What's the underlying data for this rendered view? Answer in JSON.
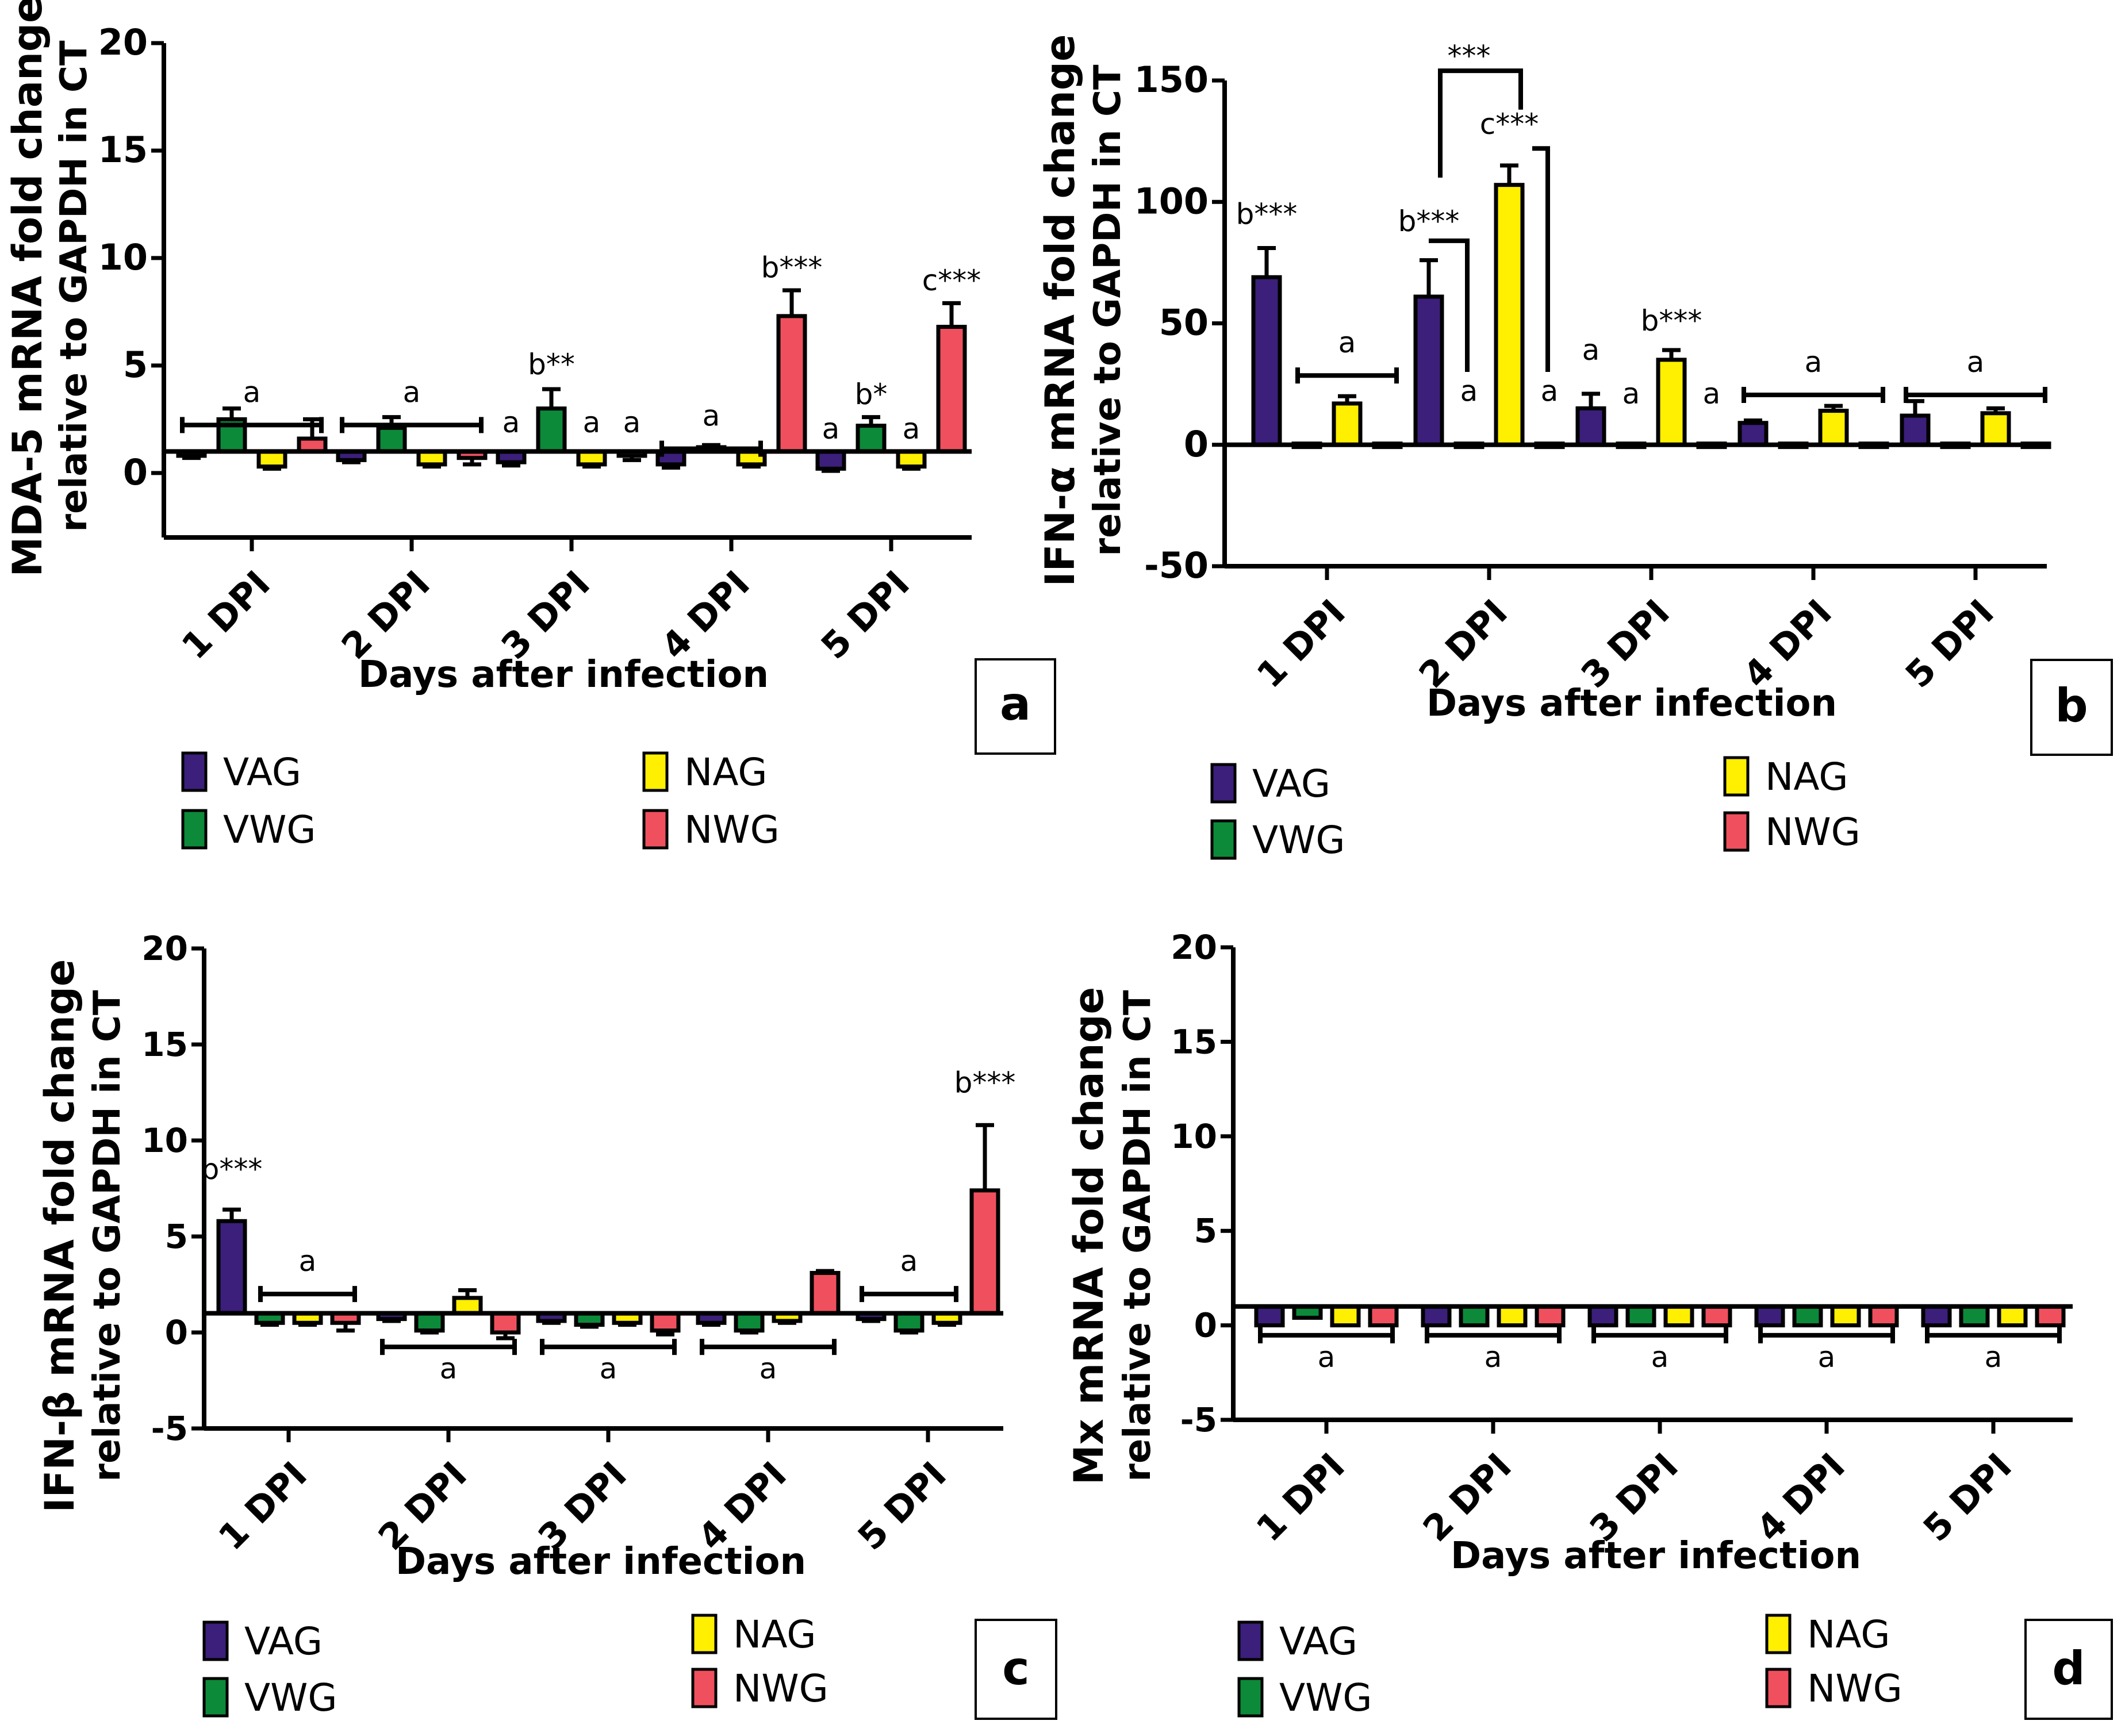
{
  "colors": {
    "VAG": "#3b1f7a",
    "VWG": "#0c8a3a",
    "NAG": "#ffef00",
    "NWG": "#f0505e",
    "axis": "#000000"
  },
  "legend": [
    "VAG",
    "VWG",
    "NAG",
    "NWG"
  ],
  "chart_data": [
    {
      "panel": "a",
      "type": "bar",
      "ylabel_line1": "MDA-5 mRNA fold change",
      "ylabel_line2": "relative to GAPDH in CT",
      "xlabel": "Days after infection",
      "categories": [
        "1 DPI",
        "2 DPI",
        "3 DPI",
        "4 DPI",
        "5 DPI"
      ],
      "ylim": [
        -3,
        20
      ],
      "baseline": 1,
      "yticks": [
        "20",
        "15",
        "10",
        "5",
        "0"
      ],
      "ytick_values": [
        20,
        15,
        10,
        5,
        0
      ],
      "series": [
        {
          "name": "VAG",
          "values": [
            0.8,
            0.6,
            0.5,
            0.4,
            0.2
          ],
          "errors": [
            0.1,
            0.1,
            0.15,
            0.15,
            0.1
          ]
        },
        {
          "name": "VWG",
          "values": [
            2.5,
            2.1,
            3.0,
            1.2,
            2.2
          ],
          "errors": [
            0.5,
            0.5,
            0.9,
            0.1,
            0.4
          ]
        },
        {
          "name": "NAG",
          "values": [
            0.3,
            0.4,
            0.4,
            0.4,
            0.3
          ],
          "errors": [
            0.1,
            0.1,
            0.1,
            0.1,
            0.1
          ]
        },
        {
          "name": "NWG",
          "values": [
            1.6,
            0.7,
            0.8,
            7.3,
            6.8
          ],
          "errors": [
            0.9,
            0.3,
            0.2,
            1.2,
            1.1
          ]
        }
      ],
      "annotations": [
        {
          "text": "a",
          "group": 0,
          "bar": 1.5,
          "value": 3.3,
          "bracket": [
            0,
            3
          ]
        },
        {
          "text": "a",
          "group": 1,
          "bar": 1.5,
          "value": 3.3,
          "bracket": [
            0,
            3
          ]
        },
        {
          "text": "a",
          "group": 2,
          "bar": 0,
          "value": 1.9
        },
        {
          "text": "b**",
          "group": 2,
          "bar": 1,
          "value": 4.6
        },
        {
          "text": "a",
          "group": 2,
          "bar": 2,
          "value": 1.9
        },
        {
          "text": "a",
          "group": 2,
          "bar": 3,
          "value": 1.9
        },
        {
          "text": "a",
          "group": 3,
          "bar": 1.0,
          "value": 2.2,
          "bracket": [
            0,
            2
          ]
        },
        {
          "text": "b***",
          "group": 3,
          "bar": 3,
          "value": 9.1
        },
        {
          "text": "a",
          "group": 4,
          "bar": 0,
          "value": 1.6
        },
        {
          "text": "b*",
          "group": 4,
          "bar": 1,
          "value": 3.2
        },
        {
          "text": "a",
          "group": 4,
          "bar": 2,
          "value": 1.6
        },
        {
          "text": "c***",
          "group": 4,
          "bar": 3,
          "value": 8.5
        }
      ],
      "panel_label": "a"
    },
    {
      "panel": "b",
      "type": "bar",
      "ylabel_line1": "IFN-α mRNA fold change",
      "ylabel_line2": "relative to GAPDH in CT",
      "xlabel": "Days after infection",
      "categories": [
        "1 DPI",
        "2 DPI",
        "3 DPI",
        "4 DPI",
        "5 DPI"
      ],
      "ylim": [
        -50,
        150
      ],
      "baseline": 0,
      "yticks": [
        "150",
        "100",
        "50",
        "0",
        "-50"
      ],
      "ytick_values": [
        150,
        100,
        50,
        0,
        -50
      ],
      "series": [
        {
          "name": "VAG",
          "values": [
            69,
            61,
            15,
            9,
            12
          ],
          "errors": [
            12,
            15,
            6,
            1,
            6
          ]
        },
        {
          "name": "VWG",
          "values": [
            0.5,
            0.5,
            0.5,
            0.5,
            0.5
          ],
          "errors": [
            0,
            0,
            0,
            0,
            0
          ]
        },
        {
          "name": "NAG",
          "values": [
            17,
            107,
            35,
            14,
            13
          ],
          "errors": [
            3,
            8,
            4,
            2,
            2
          ]
        },
        {
          "name": "NWG",
          "values": [
            0.5,
            0.5,
            0.5,
            0.5,
            0.5
          ],
          "errors": [
            0,
            0,
            0,
            0,
            0
          ]
        }
      ],
      "annotations": [
        {
          "text": "b***",
          "group": 0,
          "bar": 0,
          "value": 91
        },
        {
          "text": "a",
          "group": 0,
          "bar": 2,
          "value": 38,
          "bracket": [
            1,
            3
          ]
        },
        {
          "text": "b***",
          "group": 1,
          "bar": 0,
          "value": 88
        },
        {
          "text": "a",
          "group": 1,
          "bar": 1,
          "value": 18
        },
        {
          "text": "c***",
          "group": 1,
          "bar": 2,
          "value": 128
        },
        {
          "text": "a",
          "group": 1,
          "bar": 3,
          "value": 18
        },
        {
          "text": "***",
          "group": 1,
          "bar": 1,
          "value": 156
        },
        {
          "text": "a",
          "group": 2,
          "bar": 0,
          "value": 35
        },
        {
          "text": "a",
          "group": 2,
          "bar": 1,
          "value": 17
        },
        {
          "text": "b***",
          "group": 2,
          "bar": 2,
          "value": 47
        },
        {
          "text": "a",
          "group": 2,
          "bar": 3,
          "value": 17
        },
        {
          "text": "a",
          "group": 3,
          "bar": 1.5,
          "value": 30,
          "bracket": [
            0,
            3
          ]
        },
        {
          "text": "a",
          "group": 4,
          "bar": 1.5,
          "value": 30,
          "bracket": [
            0,
            3
          ]
        }
      ],
      "panel_label": "b"
    },
    {
      "panel": "c",
      "type": "bar",
      "ylabel_line1": "IFN-β mRNA fold change",
      "ylabel_line2": "relative to GAPDH in CT",
      "xlabel": "Days after infection",
      "categories": [
        "1 DPI",
        "2 DPI",
        "3 DPI",
        "4 DPI",
        "5 DPI"
      ],
      "ylim": [
        -5,
        20
      ],
      "baseline": 1,
      "yticks": [
        "20",
        "15",
        "10",
        "5",
        "0",
        "-5"
      ],
      "ytick_values": [
        20,
        15,
        10,
        5,
        0,
        -5
      ],
      "series": [
        {
          "name": "VAG",
          "values": [
            5.8,
            0.7,
            0.6,
            0.5,
            0.7
          ],
          "errors": [
            0.6,
            0.1,
            0.1,
            0.1,
            0.1
          ]
        },
        {
          "name": "VWG",
          "values": [
            0.5,
            0.1,
            0.4,
            0.1,
            0.1
          ],
          "errors": [
            0.1,
            0.1,
            0.1,
            0.1,
            0.1
          ]
        },
        {
          "name": "NAG",
          "values": [
            0.5,
            1.8,
            0.5,
            0.6,
            0.5
          ],
          "errors": [
            0.1,
            0.4,
            0.1,
            0.1,
            0.1
          ]
        },
        {
          "name": "NWG",
          "values": [
            0.5,
            0.0,
            0.1,
            3.1,
            7.4
          ],
          "errors": [
            0.4,
            0.3,
            0.2,
            0.1,
            3.4
          ]
        }
      ],
      "annotations": [
        {
          "text": "b***",
          "group": 0,
          "bar": 0,
          "value": 8.0
        },
        {
          "text": "a",
          "group": 0,
          "bar": 2,
          "value": 3.2,
          "bracket": [
            1,
            3
          ]
        },
        {
          "text": "a",
          "group": 1,
          "bar": 1.5,
          "value": -2.4,
          "bracket": [
            0,
            3
          ],
          "below": true
        },
        {
          "text": "a",
          "group": 2,
          "bar": 1.5,
          "value": -2.4,
          "bracket": [
            0,
            3
          ],
          "below": true
        },
        {
          "text": "a",
          "group": 3,
          "bar": 1.5,
          "value": -2.4,
          "bracket": [
            0,
            3
          ],
          "below": true
        },
        {
          "text": "a",
          "group": 4,
          "bar": 1.0,
          "value": 3.2,
          "bracket": [
            0,
            2
          ]
        },
        {
          "text": "b***",
          "group": 4,
          "bar": 3,
          "value": 12.5
        }
      ],
      "panel_label": "c"
    },
    {
      "panel": "d",
      "type": "bar",
      "ylabel_line1": "Mx mRNA fold change",
      "ylabel_line2": "relative to GAPDH in CT",
      "xlabel": "Days after infection",
      "categories": [
        "1 DPI",
        "2 DPI",
        "3 DPI",
        "4 DPI",
        "5 DPI"
      ],
      "ylim": [
        -5,
        20
      ],
      "baseline": 1,
      "yticks": [
        "20",
        "15",
        "10",
        "5",
        "0",
        "-5"
      ],
      "ytick_values": [
        20,
        15,
        10,
        5,
        0,
        -5
      ],
      "series": [
        {
          "name": "VAG",
          "values": [
            0.0,
            0.0,
            0.0,
            0.0,
            0.0
          ],
          "errors": [
            0,
            0,
            0,
            0,
            0
          ]
        },
        {
          "name": "VWG",
          "values": [
            0.4,
            0.0,
            0.0,
            0.0,
            0.0
          ],
          "errors": [
            0,
            0,
            0,
            0,
            0
          ]
        },
        {
          "name": "NAG",
          "values": [
            0.0,
            0.0,
            0.0,
            0.0,
            0.0
          ],
          "errors": [
            0,
            0,
            0,
            0,
            0
          ]
        },
        {
          "name": "NWG",
          "values": [
            0.0,
            0.0,
            0.0,
            0.0,
            0.0
          ],
          "errors": [
            0,
            0,
            0,
            0,
            0
          ]
        }
      ],
      "annotations": [
        {
          "text": "a",
          "group": 0,
          "bar": 1.5,
          "value": -2.2,
          "bracket": [
            0,
            3
          ],
          "below": true
        },
        {
          "text": "a",
          "group": 1,
          "bar": 1.5,
          "value": -2.2,
          "bracket": [
            0,
            3
          ],
          "below": true
        },
        {
          "text": "a",
          "group": 2,
          "bar": 1.5,
          "value": -2.2,
          "bracket": [
            0,
            3
          ],
          "below": true
        },
        {
          "text": "a",
          "group": 3,
          "bar": 1.5,
          "value": -2.2,
          "bracket": [
            0,
            3
          ],
          "below": true
        },
        {
          "text": "a",
          "group": 4,
          "bar": 1.5,
          "value": -2.2,
          "bracket": [
            0,
            3
          ],
          "below": true
        }
      ],
      "panel_label": "d"
    }
  ]
}
